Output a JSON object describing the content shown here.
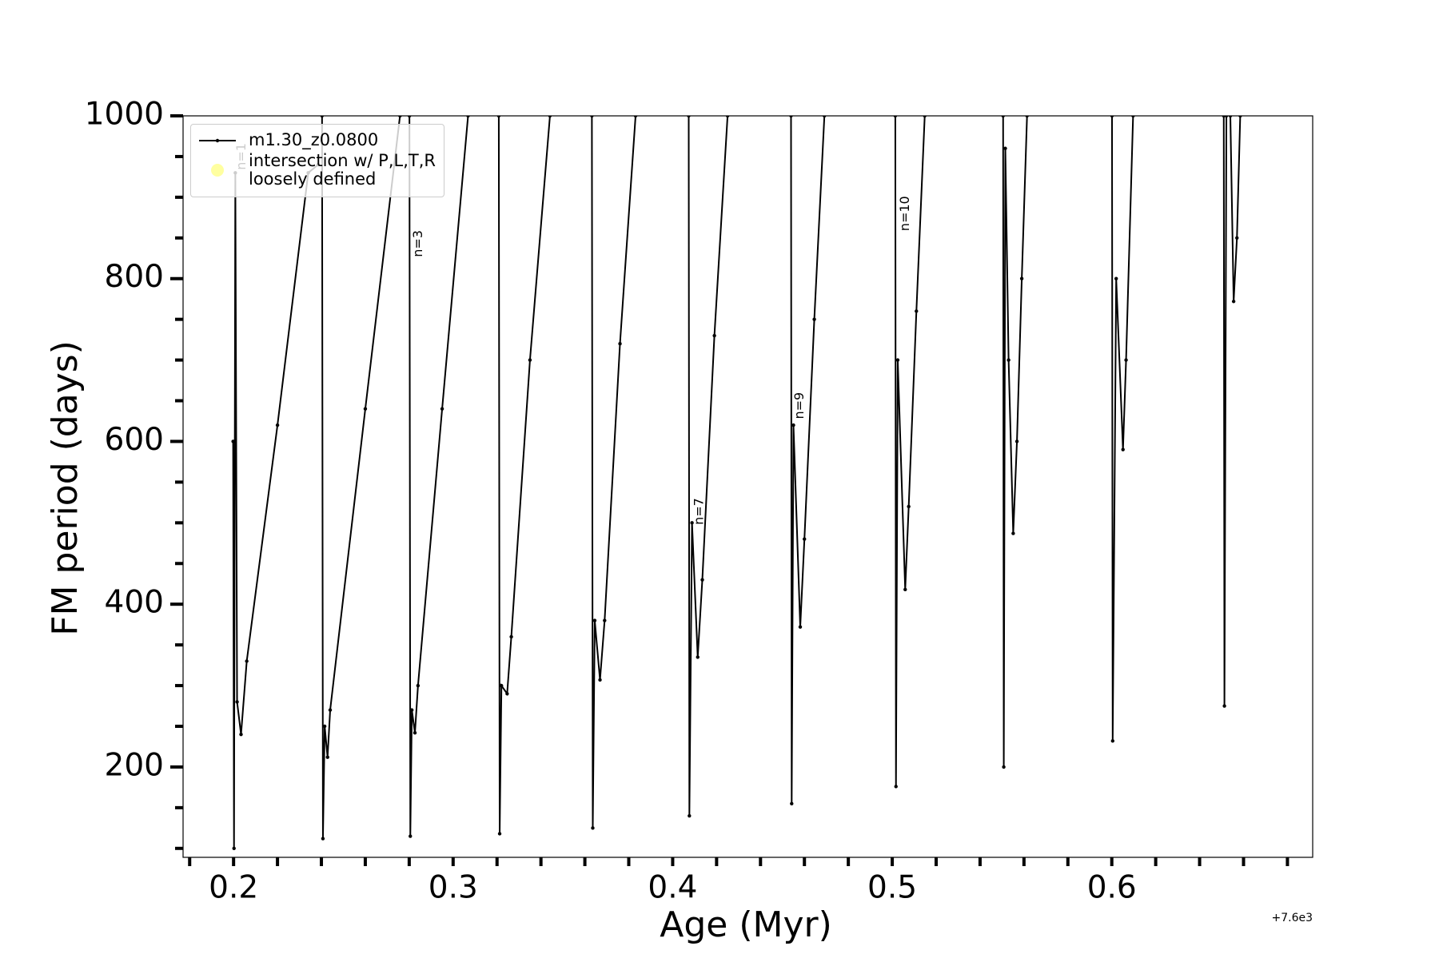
{
  "chart_data": {
    "type": "line",
    "xlabel": "Age (Myr)",
    "ylabel": "FM period (days)",
    "x_offset_label": "+7.6e3",
    "xlim": [
      0.177,
      0.6915
    ],
    "ylim": [
      89,
      1000
    ],
    "xticks": [
      0.2,
      0.3,
      0.4,
      0.5,
      0.6
    ],
    "xminorticks": [
      0.18,
      0.22,
      0.24,
      0.26,
      0.28,
      0.32,
      0.34,
      0.36,
      0.38,
      0.42,
      0.44,
      0.46,
      0.48,
      0.52,
      0.54,
      0.56,
      0.58,
      0.62,
      0.64,
      0.66,
      0.68
    ],
    "yticks": [
      200,
      400,
      600,
      800,
      1000
    ],
    "yminorticks": [
      100,
      150,
      250,
      300,
      350,
      450,
      500,
      550,
      650,
      700,
      750,
      850,
      900,
      950
    ],
    "legend": "upper left",
    "series": [
      {
        "name": "m1.30_z0.0800",
        "color": "#000000",
        "x": [
          0.1998,
          0.2002,
          0.2008,
          0.2016,
          0.2034,
          0.206,
          0.22,
          0.234,
          0.2385,
          null,
          0.2403,
          0.2407,
          0.2415,
          0.2428,
          0.244,
          0.26,
          0.2758,
          null,
          0.2801,
          0.2805,
          0.2812,
          0.2826,
          0.284,
          0.295,
          0.3068,
          null,
          0.3208,
          0.3212,
          0.322,
          0.3246,
          0.3265,
          0.335,
          0.3441,
          null,
          0.3632,
          0.3636,
          0.3645,
          0.3669,
          0.369,
          0.376,
          0.3831,
          null,
          0.4073,
          0.4076,
          0.4088,
          0.4114,
          0.4135,
          0.419,
          0.425,
          null,
          0.4539,
          0.4542,
          0.455,
          0.4581,
          0.46,
          0.4645,
          0.4691,
          null,
          0.5014,
          0.5017,
          0.5025,
          0.5059,
          0.5075,
          0.511,
          0.5148,
          null,
          0.5505,
          0.5508,
          0.5515,
          0.553,
          0.5551,
          0.5568,
          0.559,
          0.5614,
          null,
          0.6001,
          0.6004,
          0.602,
          0.6051,
          0.6065,
          0.6097,
          null,
          0.651,
          0.6513,
          0.6522,
          null,
          0.654,
          0.6555,
          0.657,
          0.6585
        ],
        "values": [
          600,
          100,
          930,
          280,
          240,
          330,
          620,
          930,
          940,
          null,
          1000,
          112,
          250,
          212,
          270,
          640,
          1000,
          null,
          1000,
          115,
          270,
          242,
          300,
          640,
          1000,
          null,
          1000,
          118,
          300,
          290,
          360,
          700,
          1000,
          null,
          1000,
          125,
          380,
          307,
          380,
          720,
          1000,
          null,
          1000,
          140,
          500,
          335,
          430,
          730,
          1000,
          null,
          1000,
          155,
          620,
          372,
          480,
          750,
          1000,
          null,
          1000,
          176,
          700,
          418,
          520,
          760,
          1000,
          null,
          1000,
          200,
          960,
          700,
          487,
          600,
          800,
          1000,
          null,
          1000,
          232,
          800,
          590,
          700,
          1000,
          null,
          1000,
          275,
          1000,
          null,
          1000,
          772,
          850,
          1000
        ]
      },
      {
        "name": "intersection w/ P,L,T,R\nloosely defined",
        "color": "#ffffa0",
        "x": [],
        "values": []
      }
    ],
    "annotations": [
      {
        "text": "n=1",
        "x": 0.2038,
        "y": 950
      },
      {
        "text": "n=3",
        "x": 0.2843,
        "y": 843
      },
      {
        "text": "n=7",
        "x": 0.4123,
        "y": 514
      },
      {
        "text": "n=9",
        "x": 0.458,
        "y": 644
      },
      {
        "text": "n=10",
        "x": 0.506,
        "y": 880
      }
    ]
  }
}
